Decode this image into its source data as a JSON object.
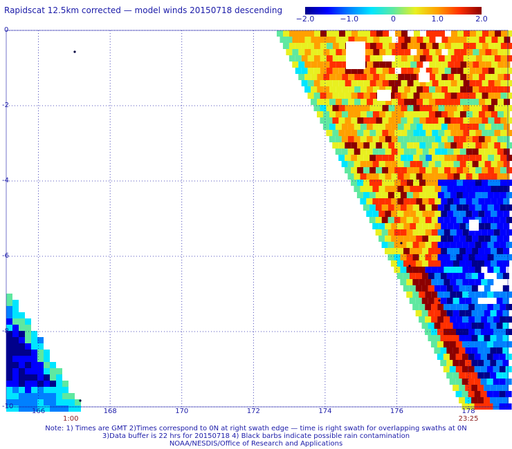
{
  "title": "Rapidscat 12.5km corrected — model winds 20150718 descending",
  "colorbar": {
    "ticks": [
      "−2.0",
      "−1.0",
      "0",
      "1.0",
      "2.0"
    ],
    "tick_values": [
      -2.0,
      -1.0,
      0,
      1.0,
      2.0
    ],
    "range": [
      -2.0,
      2.0
    ],
    "colors": [
      "#00008b",
      "#0000ff",
      "#0080ff",
      "#00e5ff",
      "#5fe8a0",
      "#e8f020",
      "#ffa000",
      "#ff3000",
      "#8b0000"
    ]
  },
  "map": {
    "lat_ticks": [
      "0",
      "-2",
      "-4",
      "-6",
      "-8",
      "-10"
    ],
    "lat_values": [
      0,
      -2,
      -4,
      -6,
      -8,
      -10
    ],
    "lon_ticks": [
      "166",
      "168",
      "170",
      "172",
      "174",
      "176",
      "178"
    ],
    "lon_values": [
      166,
      168,
      170,
      172,
      174,
      176,
      178
    ],
    "lon_range": [
      165.1,
      179.1
    ],
    "lat_range": [
      -10.0,
      0.0
    ],
    "gridlines": "dotted",
    "time_labels": [
      {
        "text": "1:00",
        "lon": 166.9
      },
      {
        "text": "23:25",
        "lon": 178.0
      }
    ]
  },
  "footer": {
    "line1": "Note: 1) Times are GMT 2)Times correspond to 0N at right swath edge — time is right swath for overlapping swaths at 0N",
    "line2": "3)Data buffer is 22 hrs for 20150718 4) Black barbs indicate possible rain contamination",
    "line3": "NOAA/NESDIS/Office of Research and Applications"
  }
}
